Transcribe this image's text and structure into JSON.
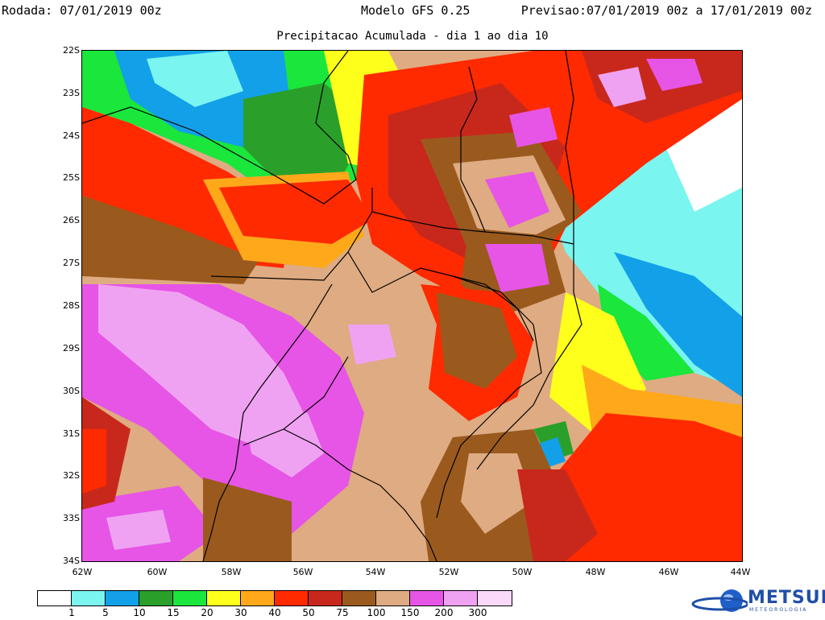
{
  "header": {
    "run": "Rodada: 07/01/2019 00z",
    "model": "Modelo GFS 0.25",
    "valid": "Previsao:07/01/2019 00z a 17/01/2019 00z",
    "subtitle": "Precipitacao Acumulada - dia 1 ao dia 10"
  },
  "map": {
    "lat_ticks": [
      "22S",
      "23S",
      "24S",
      "25S",
      "26S",
      "27S",
      "28S",
      "29S",
      "30S",
      "31S",
      "32S",
      "33S",
      "34S"
    ],
    "lon_ticks": [
      "62W",
      "60W",
      "58W",
      "56W",
      "54W",
      "52W",
      "50W",
      "48W",
      "46W",
      "44W"
    ]
  },
  "legend": {
    "colors": [
      "#ffffff",
      "#7af5f0",
      "#12a0e8",
      "#2aa02a",
      "#1ae63c",
      "#ffff1c",
      "#ffa81a",
      "#ff2a00",
      "#c8281c",
      "#9a5a1e",
      "#dfab82",
      "#e655e6",
      "#f0a2f2",
      "#fad9fa"
    ],
    "labels": [
      "1",
      "5",
      "10",
      "15",
      "20",
      "30",
      "40",
      "50",
      "75",
      "100",
      "150",
      "200",
      "300"
    ]
  },
  "logo": {
    "name": "METSUL",
    "sub": "METEOROLOGIA"
  }
}
